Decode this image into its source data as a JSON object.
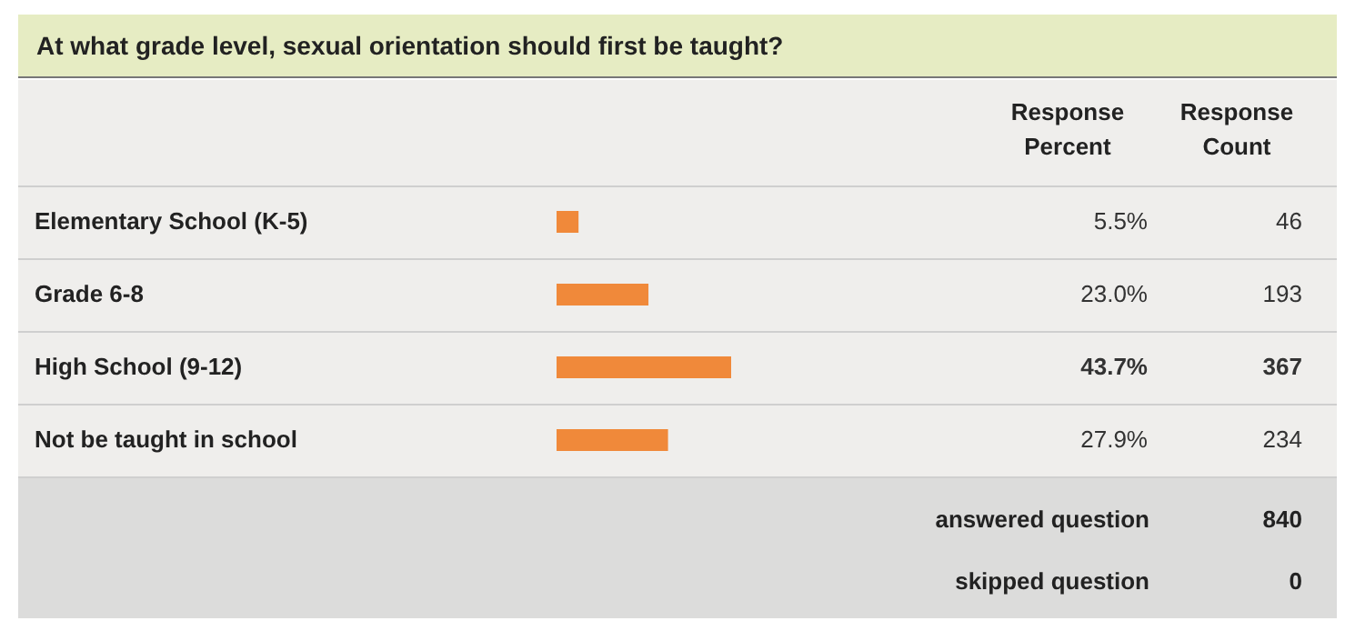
{
  "chart_data": {
    "type": "bar",
    "orientation": "horizontal",
    "title": "At what grade level, sexual orientation should first be taught?",
    "categories": [
      "Elementary School (K-5)",
      "Grade 6-8",
      "High School (9-12)",
      "Not be taught in school"
    ],
    "values": [
      5.5,
      23.0,
      43.7,
      27.9
    ],
    "value_labels": [
      "5.5%",
      "23.0%",
      "43.7%",
      "27.9%"
    ],
    "color": "#f0893a",
    "annotations": [
      "Response Percent",
      "Response Count",
      "46",
      "193",
      "367",
      "234",
      "answered question",
      "840",
      "skipped question",
      "0"
    ]
  }
}
